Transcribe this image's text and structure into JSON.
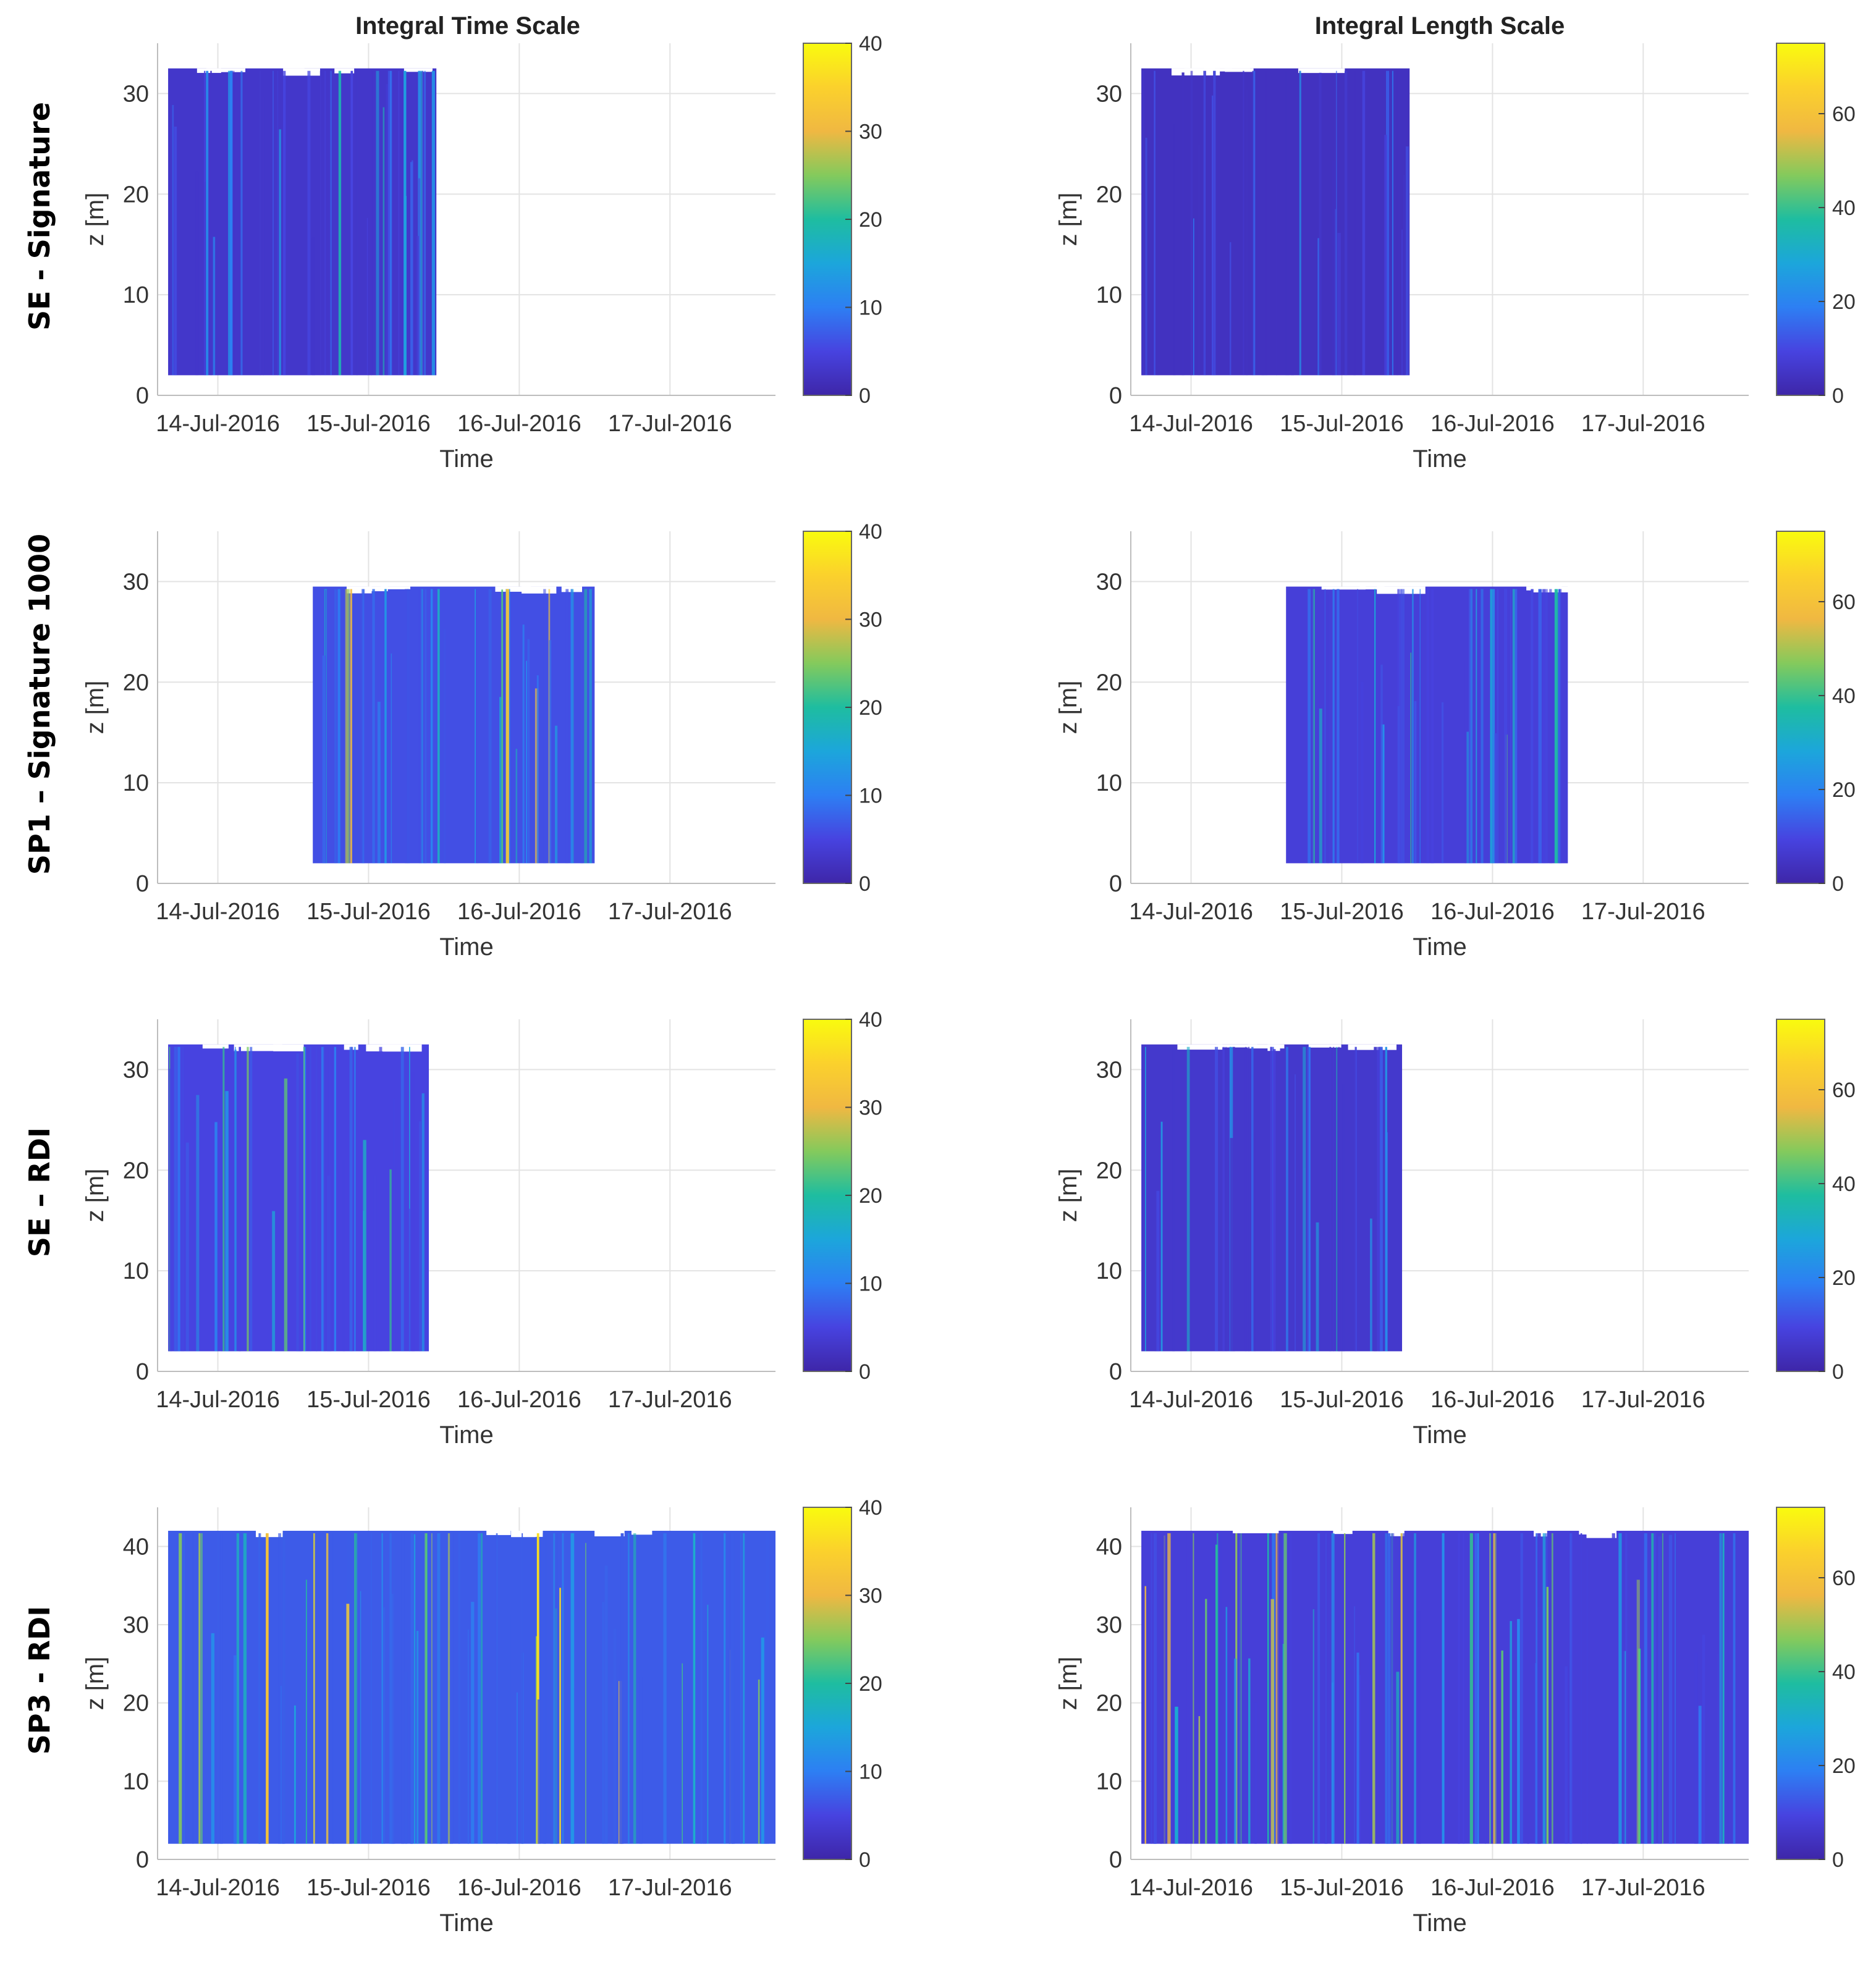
{
  "figure": {
    "column_titles": [
      "Integral Time Scale",
      "Integral Length Scale"
    ],
    "row_labels": [
      "SE - Signature",
      "SP1 – Signature 1000",
      "SE – RDI",
      "SP3 - RDI"
    ]
  },
  "chart_data": [
    {
      "type": "heatmap",
      "row": 0,
      "col": 0,
      "title": "Integral Time Scale",
      "row_label": "SE - Signature",
      "xlabel": "Time",
      "ylabel": "z [m]",
      "x_ticks": [
        "14-Jul-2016",
        "15-Jul-2016",
        "16-Jul-2016",
        "17-Jul-2016"
      ],
      "xlim_days": [
        13.6,
        17.7
      ],
      "ylim": [
        0,
        35
      ],
      "y_ticks": [
        0,
        10,
        20,
        30
      ],
      "colorbar": {
        "ticks": [
          0,
          10,
          20,
          30,
          40
        ],
        "range": [
          0,
          40
        ]
      },
      "data_extent": {
        "t_start_days": 13.67,
        "t_end_days": 15.45,
        "z_min": 2,
        "z_max": 32.5
      },
      "mean_value": 3,
      "peak_value": 20,
      "palette": "parula",
      "color": "#3e26a8"
    },
    {
      "type": "heatmap",
      "row": 0,
      "col": 1,
      "title": "Integral Length Scale",
      "row_label": "SE - Signature",
      "xlabel": "Time",
      "ylabel": "z [m]",
      "x_ticks": [
        "14-Jul-2016",
        "15-Jul-2016",
        "16-Jul-2016",
        "17-Jul-2016"
      ],
      "xlim_days": [
        13.6,
        17.7
      ],
      "ylim": [
        0,
        35
      ],
      "y_ticks": [
        0,
        10,
        20,
        30
      ],
      "colorbar": {
        "ticks": [
          0,
          20,
          40,
          60
        ],
        "range": [
          0,
          75
        ]
      },
      "data_extent": {
        "t_start_days": 13.67,
        "t_end_days": 15.45,
        "z_min": 2,
        "z_max": 32.5
      },
      "mean_value": 4,
      "peak_value": 25,
      "palette": "parula",
      "color": "#3e26a8"
    },
    {
      "type": "heatmap",
      "row": 1,
      "col": 0,
      "title": "",
      "row_label": "SP1 – Signature 1000",
      "xlabel": "Time",
      "ylabel": "z [m]",
      "x_ticks": [
        "14-Jul-2016",
        "15-Jul-2016",
        "16-Jul-2016",
        "17-Jul-2016"
      ],
      "xlim_days": [
        13.6,
        17.7
      ],
      "ylim": [
        0,
        35
      ],
      "y_ticks": [
        0,
        10,
        20,
        30
      ],
      "colorbar": {
        "ticks": [
          0,
          10,
          20,
          30,
          40
        ],
        "range": [
          0,
          40
        ]
      },
      "data_extent": {
        "t_start_days": 14.63,
        "t_end_days": 16.5,
        "z_min": 2,
        "z_max": 29.5
      },
      "mean_value": 6,
      "peak_value": 34,
      "palette": "parula",
      "color": "#3e26a8"
    },
    {
      "type": "heatmap",
      "row": 1,
      "col": 1,
      "title": "",
      "row_label": "SP1 – Signature 1000",
      "xlabel": "Time",
      "ylabel": "z [m]",
      "x_ticks": [
        "14-Jul-2016",
        "15-Jul-2016",
        "16-Jul-2016",
        "17-Jul-2016"
      ],
      "xlim_days": [
        13.6,
        17.7
      ],
      "ylim": [
        0,
        35
      ],
      "y_ticks": [
        0,
        10,
        20,
        30
      ],
      "colorbar": {
        "ticks": [
          0,
          20,
          40,
          60
        ],
        "range": [
          0,
          75
        ]
      },
      "data_extent": {
        "t_start_days": 14.63,
        "t_end_days": 16.5,
        "z_min": 2,
        "z_max": 29.5
      },
      "mean_value": 8,
      "peak_value": 45,
      "palette": "parula",
      "color": "#3e26a8"
    },
    {
      "type": "heatmap",
      "row": 2,
      "col": 0,
      "title": "",
      "row_label": "SE – RDI",
      "xlabel": "Time",
      "ylabel": "z [m]",
      "x_ticks": [
        "14-Jul-2016",
        "15-Jul-2016",
        "16-Jul-2016",
        "17-Jul-2016"
      ],
      "xlim_days": [
        13.6,
        17.7
      ],
      "ylim": [
        0,
        35
      ],
      "y_ticks": [
        0,
        10,
        20,
        30
      ],
      "colorbar": {
        "ticks": [
          0,
          10,
          20,
          30,
          40
        ],
        "range": [
          0,
          40
        ]
      },
      "data_extent": {
        "t_start_days": 13.67,
        "t_end_days": 15.4,
        "z_min": 2,
        "z_max": 32.5
      },
      "mean_value": 5,
      "peak_value": 25,
      "palette": "parula",
      "color": "#3e26a8"
    },
    {
      "type": "heatmap",
      "row": 2,
      "col": 1,
      "title": "",
      "row_label": "SE – RDI",
      "xlabel": "Time",
      "ylabel": "z [m]",
      "x_ticks": [
        "14-Jul-2016",
        "15-Jul-2016",
        "16-Jul-2016",
        "17-Jul-2016"
      ],
      "xlim_days": [
        13.6,
        17.7
      ],
      "ylim": [
        0,
        35
      ],
      "y_ticks": [
        0,
        10,
        20,
        30
      ],
      "colorbar": {
        "ticks": [
          0,
          20,
          40,
          60
        ],
        "range": [
          0,
          75
        ]
      },
      "data_extent": {
        "t_start_days": 13.67,
        "t_end_days": 15.4,
        "z_min": 2,
        "z_max": 32.5
      },
      "mean_value": 6,
      "peak_value": 35,
      "palette": "parula",
      "color": "#3e26a8"
    },
    {
      "type": "heatmap",
      "row": 3,
      "col": 0,
      "title": "",
      "row_label": "SP3 - RDI",
      "xlabel": "Time",
      "ylabel": "z [m]",
      "x_ticks": [
        "14-Jul-2016",
        "15-Jul-2016",
        "16-Jul-2016",
        "17-Jul-2016"
      ],
      "xlim_days": [
        13.6,
        17.7
      ],
      "ylim": [
        0,
        45
      ],
      "y_ticks": [
        0,
        10,
        20,
        30,
        40
      ],
      "colorbar": {
        "ticks": [
          0,
          10,
          20,
          30,
          40
        ],
        "range": [
          0,
          40
        ]
      },
      "data_extent": {
        "t_start_days": 13.67,
        "t_end_days": 17.7,
        "z_min": 2,
        "z_max": 42
      },
      "mean_value": 7,
      "peak_value": 38,
      "palette": "parula",
      "color": "#3e26a8"
    },
    {
      "type": "heatmap",
      "row": 3,
      "col": 1,
      "title": "",
      "row_label": "SP3 - RDI",
      "xlabel": "Time",
      "ylabel": "z [m]",
      "x_ticks": [
        "14-Jul-2016",
        "15-Jul-2016",
        "16-Jul-2016",
        "17-Jul-2016"
      ],
      "xlim_days": [
        13.6,
        17.7
      ],
      "ylim": [
        0,
        45
      ],
      "y_ticks": [
        0,
        10,
        20,
        30,
        40
      ],
      "colorbar": {
        "ticks": [
          0,
          20,
          40,
          60
        ],
        "range": [
          0,
          75
        ]
      },
      "data_extent": {
        "t_start_days": 13.67,
        "t_end_days": 17.7,
        "z_min": 2,
        "z_max": 42
      },
      "mean_value": 8,
      "peak_value": 60,
      "palette": "parula",
      "color": "#3e26a8"
    }
  ]
}
